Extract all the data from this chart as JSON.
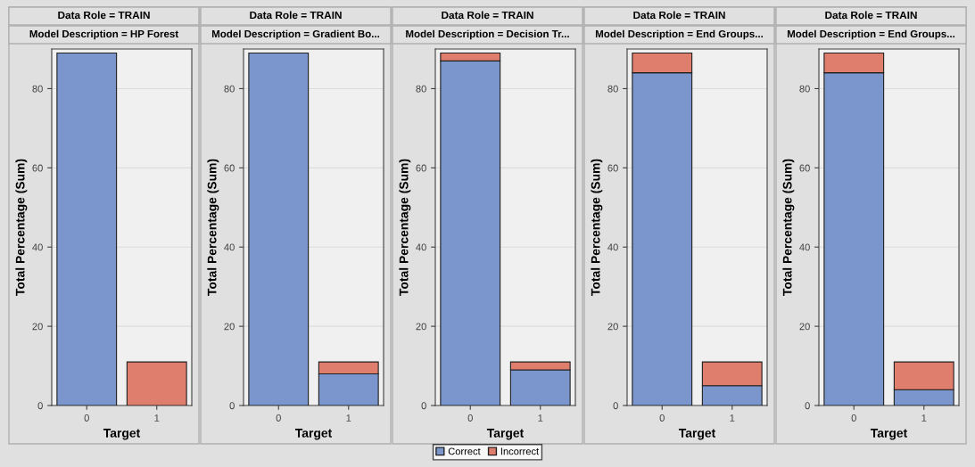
{
  "chart_data": [
    {
      "type": "bar",
      "stacked": true,
      "title": "Data Role = TRAIN",
      "subtitle": "Model Description = HP Forest",
      "xlabel": "Target",
      "ylabel": "Total Percentage (Sum)",
      "categories": [
        "0",
        "1"
      ],
      "ylim": [
        0,
        90
      ],
      "yticks": [
        0,
        20,
        40,
        60,
        80
      ],
      "grid": "y",
      "legend": "bottom",
      "series": [
        {
          "name": "Correct",
          "color": "#7b96cc",
          "values": [
            89,
            0
          ]
        },
        {
          "name": "Incorrect",
          "color": "#e07e6e",
          "values": [
            0,
            11
          ]
        }
      ]
    },
    {
      "type": "bar",
      "stacked": true,
      "title": "Data Role = TRAIN",
      "subtitle": "Model Description = Gradient Bo...",
      "xlabel": "Target",
      "ylabel": "Total Percentage (Sum)",
      "categories": [
        "0",
        "1"
      ],
      "ylim": [
        0,
        90
      ],
      "yticks": [
        0,
        20,
        40,
        60,
        80
      ],
      "grid": "y",
      "legend": "bottom",
      "series": [
        {
          "name": "Correct",
          "color": "#7b96cc",
          "values": [
            89,
            8
          ]
        },
        {
          "name": "Incorrect",
          "color": "#e07e6e",
          "values": [
            0,
            3
          ]
        }
      ]
    },
    {
      "type": "bar",
      "stacked": true,
      "title": "Data Role = TRAIN",
      "subtitle": "Model Description = Decision Tr...",
      "xlabel": "Target",
      "ylabel": "Total Percentage (Sum)",
      "categories": [
        "0",
        "1"
      ],
      "ylim": [
        0,
        90
      ],
      "yticks": [
        0,
        20,
        40,
        60,
        80
      ],
      "grid": "y",
      "legend": "bottom",
      "series": [
        {
          "name": "Correct",
          "color": "#7b96cc",
          "values": [
            87,
            9
          ]
        },
        {
          "name": "Incorrect",
          "color": "#e07e6e",
          "values": [
            2,
            2
          ]
        }
      ]
    },
    {
      "type": "bar",
      "stacked": true,
      "title": "Data Role = TRAIN",
      "subtitle": "Model Description = End Groups...",
      "xlabel": "Target",
      "ylabel": "Total Percentage (Sum)",
      "categories": [
        "0",
        "1"
      ],
      "ylim": [
        0,
        90
      ],
      "yticks": [
        0,
        20,
        40,
        60,
        80
      ],
      "grid": "y",
      "legend": "bottom",
      "series": [
        {
          "name": "Correct",
          "color": "#7b96cc",
          "values": [
            84,
            5
          ]
        },
        {
          "name": "Incorrect",
          "color": "#e07e6e",
          "values": [
            5,
            6
          ]
        }
      ]
    },
    {
      "type": "bar",
      "stacked": true,
      "title": "Data Role = TRAIN",
      "subtitle": "Model Description = End Groups...",
      "xlabel": "Target",
      "ylabel": "Total Percentage (Sum)",
      "categories": [
        "0",
        "1"
      ],
      "ylim": [
        0,
        90
      ],
      "yticks": [
        0,
        20,
        40,
        60,
        80
      ],
      "grid": "y",
      "legend": "bottom",
      "series": [
        {
          "name": "Correct",
          "color": "#7b96cc",
          "values": [
            84,
            4
          ]
        },
        {
          "name": "Incorrect",
          "color": "#e07e6e",
          "values": [
            5,
            7
          ]
        }
      ]
    }
  ]
}
